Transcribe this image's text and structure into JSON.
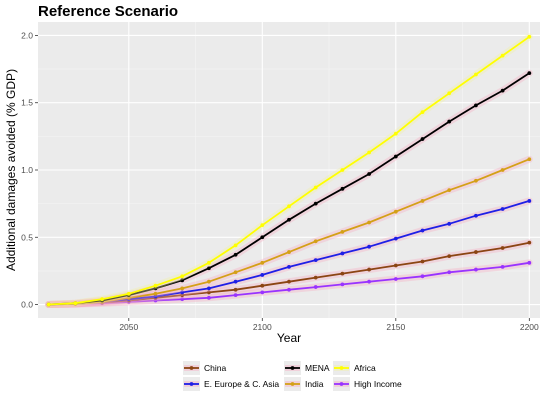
{
  "chart_data": {
    "type": "line",
    "title": "Reference Scenario",
    "xlabel": "Year",
    "ylabel": "Additional damages avoided (% GDP)",
    "xlim": [
      2016,
      2204
    ],
    "ylim": [
      -0.1,
      2.1
    ],
    "x_ticks": [
      2050,
      2100,
      2150,
      2200
    ],
    "y_ticks": [
      0.0,
      0.5,
      1.0,
      1.5,
      2.0
    ],
    "x_tick_labels": [
      "2050",
      "2100",
      "2150",
      "2200"
    ],
    "y_tick_labels": [
      "0.0",
      "0.5",
      "1.0",
      "1.5",
      "2.0"
    ],
    "grid": true,
    "background": "#ebebeb",
    "legend_position": "bottom",
    "x": [
      2020,
      2030,
      2040,
      2050,
      2060,
      2070,
      2080,
      2090,
      2100,
      2110,
      2120,
      2130,
      2140,
      2150,
      2160,
      2170,
      2180,
      2190,
      2200
    ],
    "series": [
      {
        "name": "China",
        "color": "#8B4513",
        "values": [
          0.0,
          0.005,
          0.015,
          0.03,
          0.05,
          0.07,
          0.09,
          0.11,
          0.14,
          0.17,
          0.2,
          0.23,
          0.26,
          0.29,
          0.32,
          0.36,
          0.39,
          0.42,
          0.46
        ]
      },
      {
        "name": "E. Europe & C. Asia",
        "color": "#1f1fe6",
        "values": [
          0.0,
          0.005,
          0.02,
          0.04,
          0.06,
          0.09,
          0.12,
          0.17,
          0.22,
          0.28,
          0.33,
          0.38,
          0.43,
          0.49,
          0.55,
          0.6,
          0.66,
          0.71,
          0.77
        ]
      },
      {
        "name": "MENA",
        "color": "#000000",
        "values": [
          0.0,
          0.01,
          0.03,
          0.07,
          0.12,
          0.18,
          0.27,
          0.37,
          0.5,
          0.63,
          0.75,
          0.86,
          0.97,
          1.1,
          1.23,
          1.36,
          1.48,
          1.59,
          1.72
        ]
      },
      {
        "name": "India",
        "color": "#d4a017",
        "values": [
          0.0,
          0.005,
          0.02,
          0.05,
          0.08,
          0.12,
          0.17,
          0.24,
          0.31,
          0.39,
          0.47,
          0.54,
          0.61,
          0.69,
          0.77,
          0.85,
          0.92,
          1.0,
          1.08
        ]
      },
      {
        "name": "Africa",
        "color": "#ffff00",
        "values": [
          0.0,
          0.01,
          0.04,
          0.08,
          0.14,
          0.21,
          0.31,
          0.44,
          0.59,
          0.73,
          0.87,
          1.0,
          1.13,
          1.27,
          1.43,
          1.57,
          1.71,
          1.85,
          1.99
        ]
      },
      {
        "name": "High Income",
        "color": "#9933ff",
        "values": [
          0.0,
          0.003,
          0.01,
          0.02,
          0.03,
          0.04,
          0.05,
          0.07,
          0.09,
          0.11,
          0.13,
          0.15,
          0.17,
          0.19,
          0.21,
          0.24,
          0.26,
          0.28,
          0.31
        ]
      }
    ],
    "legend_order": [
      "China",
      "MENA",
      "Africa",
      "E. Europe & C. Asia",
      "India",
      "High Income"
    ],
    "highlight_color": "#f7a8c0"
  }
}
